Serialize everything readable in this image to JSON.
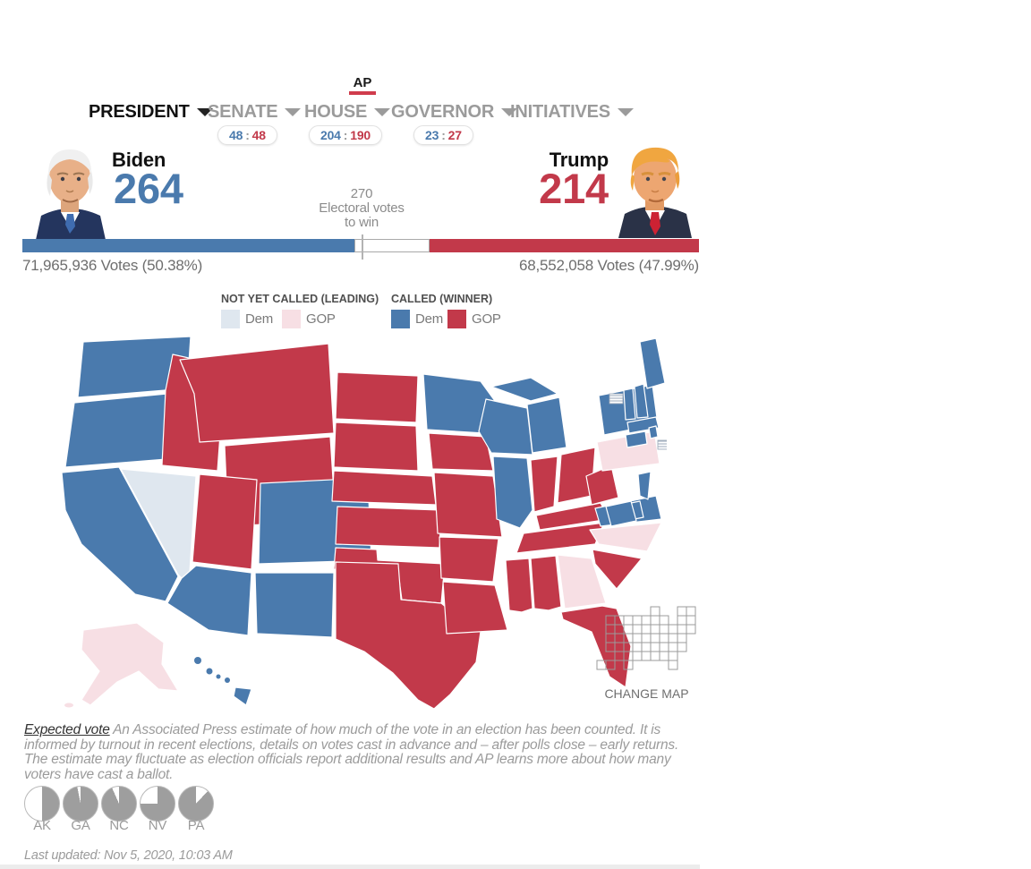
{
  "logo": {
    "text": "AP",
    "underline_color": "#d03c4c"
  },
  "nav": {
    "separator": ":",
    "items": [
      {
        "label": "PRESIDENT",
        "active": true
      },
      {
        "label": "SENATE",
        "active": false,
        "pill": {
          "dem": "48",
          "gop": "48"
        }
      },
      {
        "label": "HOUSE",
        "active": false,
        "pill": {
          "dem": "204",
          "gop": "190"
        }
      },
      {
        "label": "GOVERNOR",
        "active": false,
        "pill": {
          "dem": "23",
          "gop": "27"
        }
      },
      {
        "label": "INITIATIVES",
        "active": false
      }
    ]
  },
  "scoreboard": {
    "dem": {
      "name": "Biden",
      "electoral": "264",
      "votes": "71,965,936 Votes (50.38%)",
      "color": "#4a7aad"
    },
    "gop": {
      "name": "Trump",
      "electoral": "214",
      "votes": "68,552,058 Votes (47.99%)",
      "color": "#c2394a"
    },
    "threshold": {
      "value": "270",
      "line1": "Electoral votes",
      "line2": "to win"
    },
    "bar": {
      "dem_pct": 49.07,
      "gop_pct": 39.78,
      "tick_pct": 50.19
    }
  },
  "legend": {
    "not_called": {
      "title": "NOT YET CALLED (LEADING)",
      "dem_label": "Dem",
      "gop_label": "GOP",
      "dem_color": "#dfe7ef",
      "gop_color": "#f7dfe4"
    },
    "called": {
      "title": "CALLED (WINNER)",
      "dem_label": "Dem",
      "gop_label": "GOP",
      "dem_color": "#4a7aad",
      "gop_color": "#c2394a"
    }
  },
  "map": {
    "colors": {
      "dem-win": "#4a7aad",
      "gop-win": "#c2394a",
      "dem-lead": "#dfe7ef",
      "gop-lead": "#f7dfe4"
    },
    "states": {
      "WA": "dem-win",
      "OR": "dem-win",
      "CA": "dem-win",
      "NV": "dem-lead",
      "ID": "gop-win",
      "MT": "gop-win",
      "WY": "gop-win",
      "UT": "gop-win",
      "CO": "dem-win",
      "AZ": "dem-win",
      "NM": "dem-win",
      "ND": "gop-win",
      "SD": "gop-win",
      "NE": "gop-win",
      "KS": "gop-win",
      "OK": "gop-win",
      "TX": "gop-win",
      "MN": "dem-win",
      "IA": "gop-win",
      "MO": "gop-win",
      "AR": "gop-win",
      "LA": "gop-win",
      "WI": "dem-win",
      "IL": "dem-win",
      "MI": "dem-win",
      "IN": "gop-win",
      "OH": "gop-win",
      "KY": "gop-win",
      "TN": "gop-win",
      "WV": "gop-win",
      "VA": "dem-win",
      "NC": "gop-lead",
      "SC": "gop-win",
      "GA": "gop-lead",
      "AL": "gop-win",
      "MS": "gop-win",
      "FL": "gop-win",
      "PA": "gop-lead",
      "NY": "dem-win",
      "ME": "dem-win",
      "VT": "dem-win",
      "NH": "dem-win",
      "MA": "dem-win",
      "CT": "dem-win",
      "RI": "dem-win",
      "NJ": "dem-win",
      "DE": "dem-win",
      "MD": "dem-win",
      "AK": "gop-lead",
      "HI": "dem-win"
    }
  },
  "change_map": {
    "label": "CHANGE MAP"
  },
  "expected_vote": {
    "title": "Expected vote",
    "body": " An Associated Press estimate of how much of the vote in an election has been counted. It is informed by turnout in recent elections, details on votes cast in advance and – after polls close – early returns. The estimate may fluctuate as election officials report additional results and AP learns more about how many voters have cast a ballot."
  },
  "pies": [
    {
      "label": "AK",
      "counted_pct": 50,
      "white_start": 180,
      "white_end": 360
    },
    {
      "label": "GA",
      "counted_pct": 97,
      "white_start": 349,
      "white_end": 360
    },
    {
      "label": "NC",
      "counted_pct": 93,
      "white_start": 336,
      "white_end": 360
    },
    {
      "label": "NV",
      "counted_pct": 75,
      "white_start": 270,
      "white_end": 360
    },
    {
      "label": "PA",
      "counted_pct": 88,
      "white_start": 0,
      "white_end": 43
    }
  ],
  "footer": {
    "last_updated": "Last updated: Nov 5, 2020, 10:03 AM"
  },
  "pie_color": "#9e9e9e"
}
